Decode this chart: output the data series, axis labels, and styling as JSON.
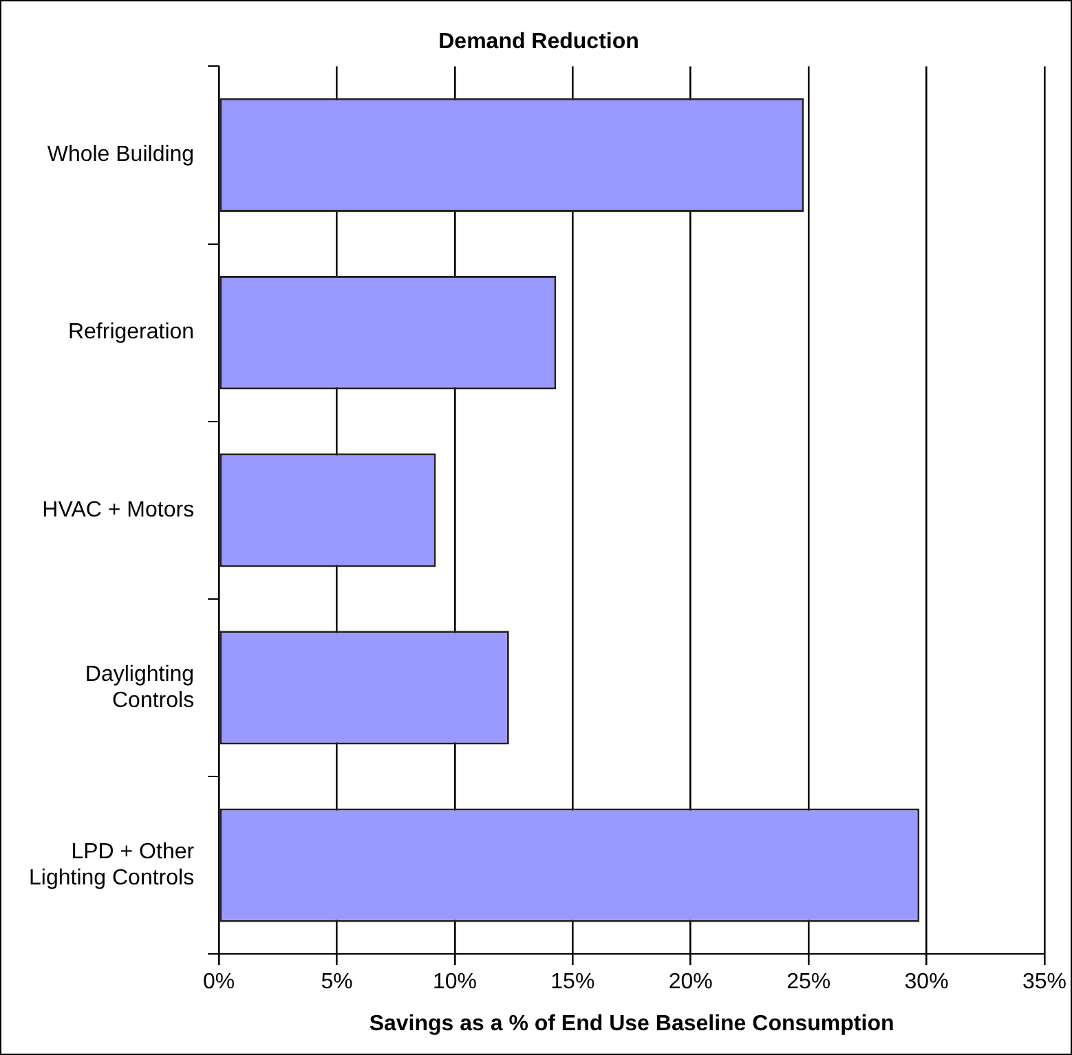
{
  "chart_data": {
    "type": "bar",
    "orientation": "horizontal",
    "title": "Demand Reduction",
    "xlabel": "Savings as a % of End Use Baseline Consumption",
    "categories": [
      "Whole Building",
      "Refrigeration",
      "HVAC + Motors",
      "Daylighting Controls",
      "LPD + Other Lighting Controls"
    ],
    "values": [
      24.8,
      14.3,
      9.2,
      12.3,
      29.7
    ],
    "color": "#9999ff",
    "xlim": [
      0,
      35
    ],
    "xticks": [
      {
        "value": 0,
        "label": "0%"
      },
      {
        "value": 5,
        "label": "5%"
      },
      {
        "value": 10,
        "label": "10%"
      },
      {
        "value": 15,
        "label": "15%"
      },
      {
        "value": 20,
        "label": "20%"
      },
      {
        "value": 25,
        "label": "25%"
      },
      {
        "value": 30,
        "label": "30%"
      },
      {
        "value": 35,
        "label": "35%"
      }
    ],
    "grid": "x",
    "legend": false
  }
}
